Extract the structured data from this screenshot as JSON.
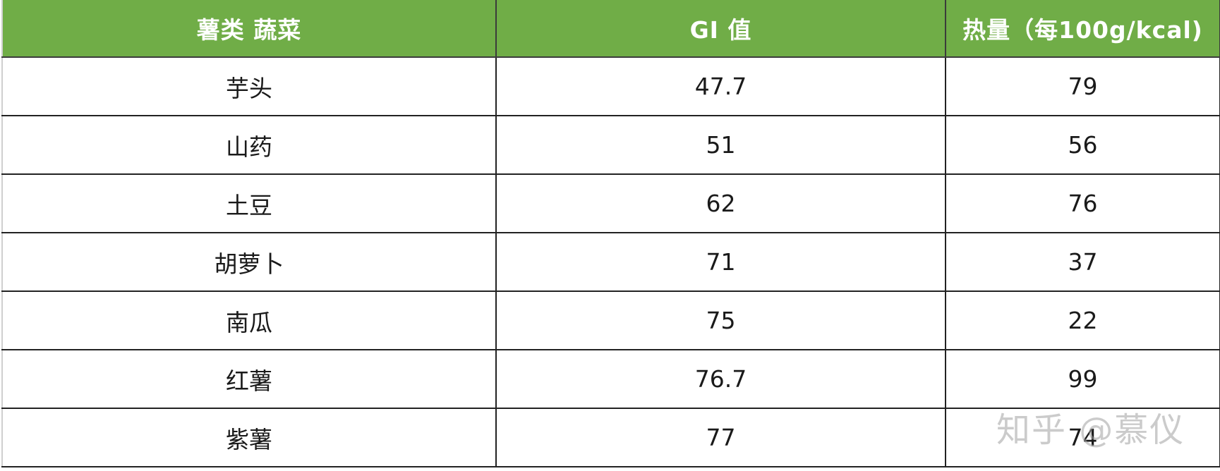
{
  "table": {
    "headers": [
      "薯类 蔬菜",
      "GI 值",
      "热量（每100g/kcal)"
    ],
    "rows": [
      [
        "芋头",
        "47.7",
        "79"
      ],
      [
        "山药",
        "51",
        "56"
      ],
      [
        "土豆",
        "62",
        "76"
      ],
      [
        "胡萝卜",
        "71",
        "37"
      ],
      [
        "南瓜",
        "75",
        "22"
      ],
      [
        "红薯",
        "76.7",
        "99"
      ],
      [
        "紫薯",
        "77",
        "74"
      ]
    ]
  },
  "colors": {
    "header_background": "#70ad47",
    "header_text": "#ffffff",
    "grid_line": "#222222"
  },
  "watermark": "知乎 @慕仪"
}
